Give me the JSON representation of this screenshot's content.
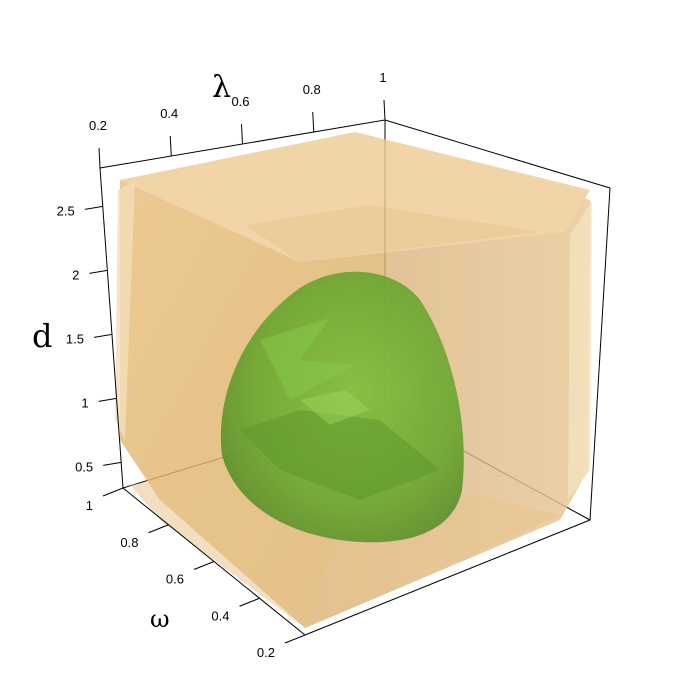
{
  "chart_data": {
    "type": "3d-isosurface",
    "axes": {
      "lambda": {
        "label": "λ",
        "ticks": [
          "0.2",
          "0.4",
          "0.6",
          "0.8",
          "1"
        ],
        "range": [
          0.2,
          1
        ]
      },
      "d": {
        "label": "d",
        "ticks": [
          "0.5",
          "1",
          "1.5",
          "2",
          "2.5"
        ],
        "range": [
          0.3,
          2.8
        ]
      },
      "omega": {
        "label": "ω",
        "ticks": [
          "0.2",
          "0.4",
          "0.6",
          "0.8",
          "1"
        ],
        "range": [
          0.2,
          1
        ]
      }
    },
    "surfaces": [
      {
        "shape": "rounded-cube",
        "color": "#e8b96a",
        "opacity": 0.75
      },
      {
        "shape": "ellipsoid",
        "color": "#6aa83a",
        "opacity": 0.85
      }
    ],
    "bounding_box": true
  }
}
